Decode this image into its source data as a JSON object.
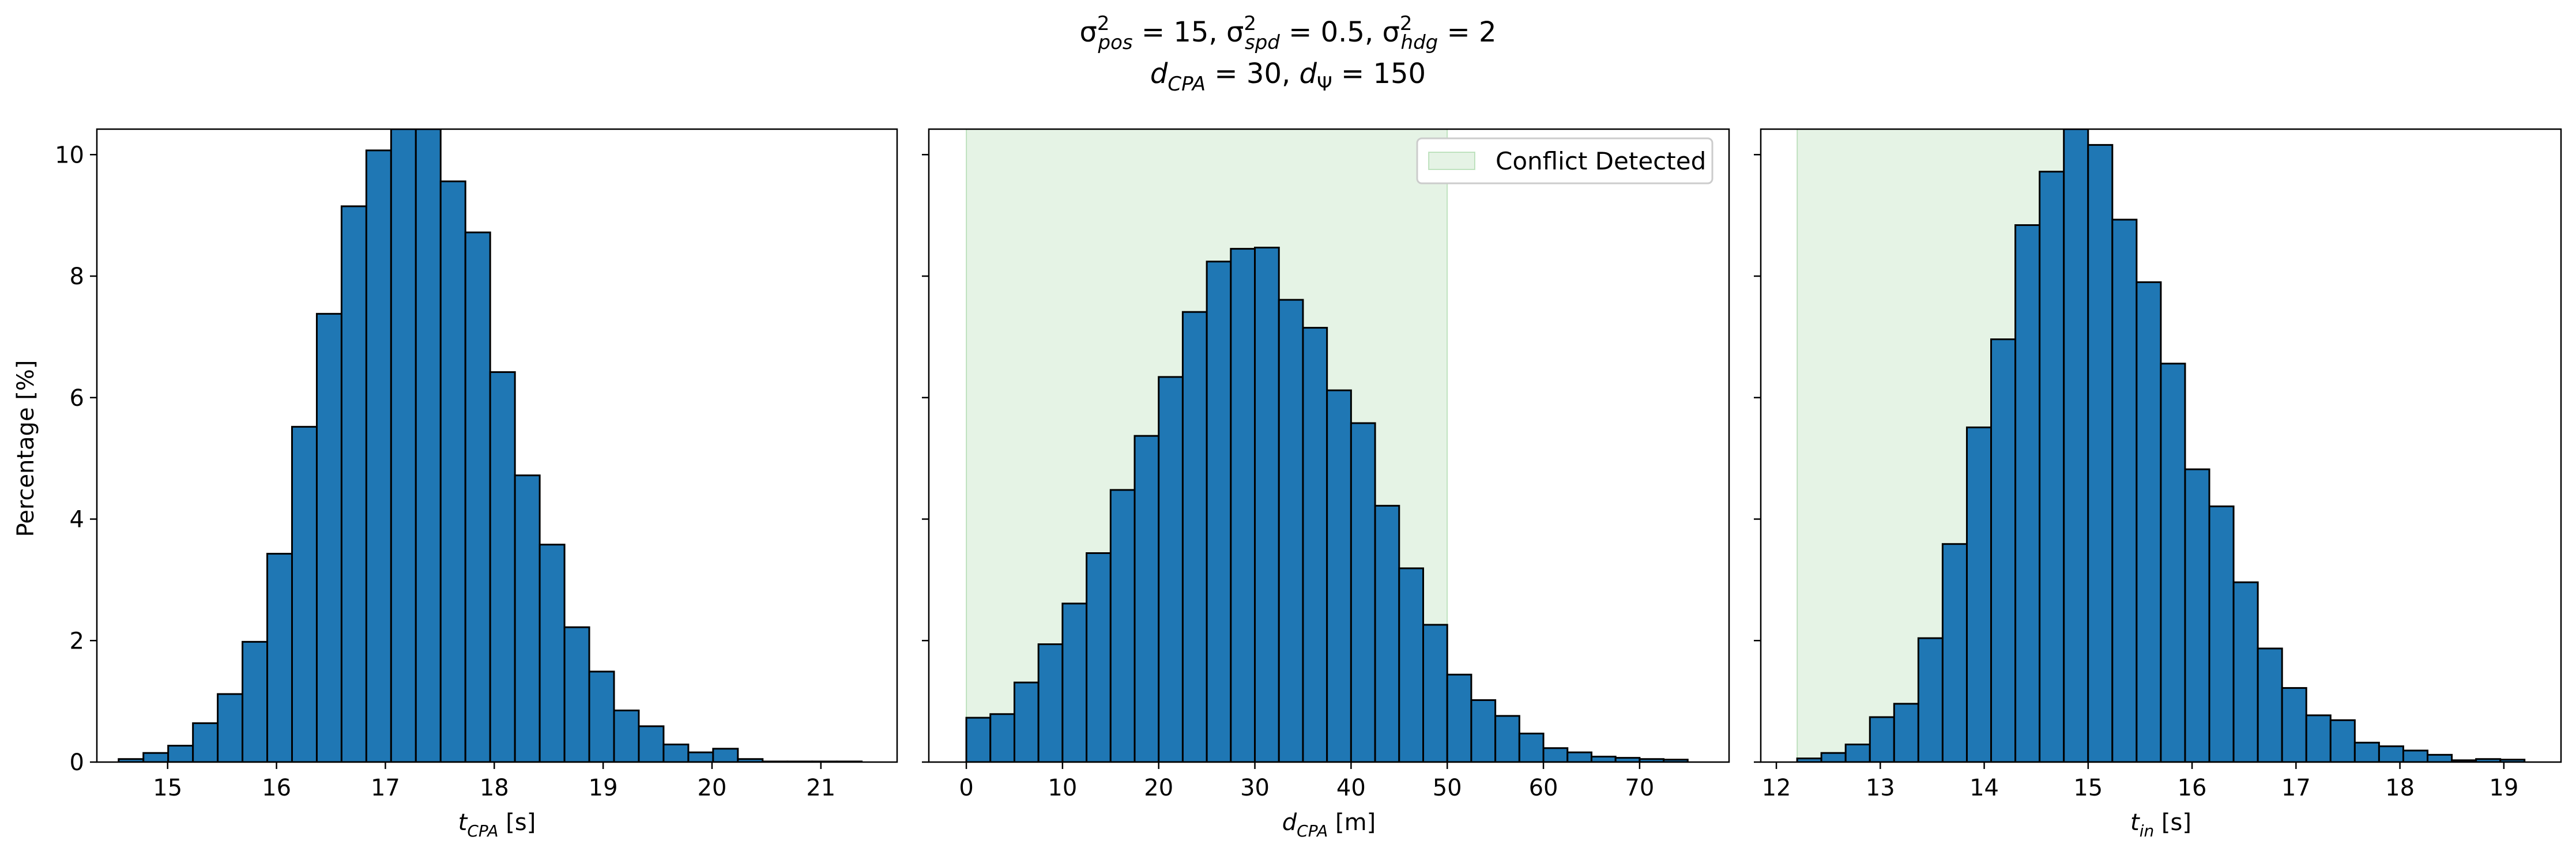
{
  "suptitle": {
    "line1": [
      {
        "t": "σ"
      },
      {
        "t": "2",
        "sup": true
      },
      {
        "t": "pos",
        "sub": true,
        "i": true
      },
      {
        "t": " = 15, "
      },
      {
        "t": "σ"
      },
      {
        "t": "2",
        "sup": true
      },
      {
        "t": "spd",
        "sub": true,
        "i": true
      },
      {
        "t": " = 0.5, "
      },
      {
        "t": "σ"
      },
      {
        "t": "2",
        "sup": true
      },
      {
        "t": "hdg",
        "sub": true,
        "i": true
      },
      {
        "t": " = 2"
      }
    ],
    "line2": [
      {
        "t": "d",
        "i": true
      },
      {
        "t": "CPA",
        "sub": true,
        "i": true
      },
      {
        "t": " = 30, "
      },
      {
        "t": "d",
        "i": true
      },
      {
        "t": "Ψ",
        "sub": true
      },
      {
        "t": " = 150"
      }
    ]
  },
  "ylabel": "Percentage [%]",
  "chart_data": [
    {
      "type": "bar",
      "xlabel": [
        {
          "t": "t",
          "i": true
        },
        {
          "t": "CPA",
          "sub": true,
          "i": true
        },
        {
          "t": " [s]"
        }
      ],
      "xlim": [
        14.35,
        21.7
      ],
      "ylim": [
        0,
        10.42
      ],
      "xticks": [
        15,
        16,
        17,
        18,
        19,
        20,
        21
      ],
      "yticks": [
        0,
        2,
        4,
        6,
        8,
        10
      ],
      "bin_start": 14.55,
      "bin_width": 0.2275,
      "values": [
        0.05,
        0.15,
        0.27,
        0.64,
        1.12,
        1.98,
        3.43,
        5.52,
        7.38,
        9.15,
        10.07,
        10.42,
        10.42,
        9.56,
        8.72,
        6.42,
        4.72,
        3.58,
        2.22,
        1.49,
        0.85,
        0.59,
        0.29,
        0.16,
        0.22,
        0.05,
        0.01,
        0.01,
        0.01,
        0.01
      ]
    },
    {
      "type": "bar",
      "xlabel": [
        {
          "t": "d",
          "i": true
        },
        {
          "t": "CPA",
          "sub": true,
          "i": true
        },
        {
          "t": " [m]"
        }
      ],
      "xlim": [
        -3.9,
        79.3
      ],
      "ylim": [
        0,
        10.42
      ],
      "xticks": [
        0,
        10,
        20,
        30,
        40,
        50,
        60,
        70
      ],
      "yticks": [
        0,
        2,
        4,
        6,
        8,
        10
      ],
      "bin_start": 0,
      "bin_width": 2.5,
      "values": [
        0.73,
        0.79,
        1.31,
        1.94,
        2.61,
        3.44,
        4.48,
        5.37,
        6.34,
        7.41,
        8.24,
        8.45,
        8.47,
        7.61,
        7.15,
        6.12,
        5.58,
        4.22,
        3.19,
        2.26,
        1.44,
        1.02,
        0.76,
        0.47,
        0.23,
        0.16,
        0.09,
        0.07,
        0.05,
        0.04
      ]
    },
    {
      "type": "bar",
      "xlabel": [
        {
          "t": "t",
          "i": true
        },
        {
          "t": "in",
          "sub": true,
          "i": true
        },
        {
          "t": " [s]"
        }
      ],
      "xlim": [
        11.85,
        19.55
      ],
      "ylim": [
        0,
        10.42
      ],
      "xticks": [
        12,
        13,
        14,
        15,
        16,
        17,
        18,
        19
      ],
      "yticks": [
        0,
        2,
        4,
        6,
        8,
        10
      ],
      "bin_start": 12.2,
      "bin_width": 0.2333,
      "values": [
        0.06,
        0.15,
        0.29,
        0.74,
        0.96,
        2.04,
        3.59,
        5.51,
        6.96,
        8.84,
        9.72,
        10.42,
        10.16,
        8.93,
        7.9,
        6.56,
        4.82,
        4.21,
        2.96,
        1.87,
        1.22,
        0.77,
        0.69,
        0.32,
        0.26,
        0.19,
        0.12,
        0.03,
        0.05,
        0.04
      ]
    }
  ],
  "shade": {
    "label": "Conflict Detected",
    "color": "#2ca02c",
    "panels": [
      {
        "panel": 1,
        "x": [
          0,
          50
        ],
        "y": [
          0,
          10.42
        ]
      },
      {
        "panel": 2,
        "x": [
          12.2,
          14.9
        ],
        "y": [
          0,
          10.42
        ]
      }
    ]
  },
  "legend": {
    "label": "Conflict Detected",
    "placement": "upper right",
    "panel": 1
  },
  "colors": {
    "bar": "#1f77b4",
    "edge": "#000000",
    "shade": "#2ca02c"
  }
}
